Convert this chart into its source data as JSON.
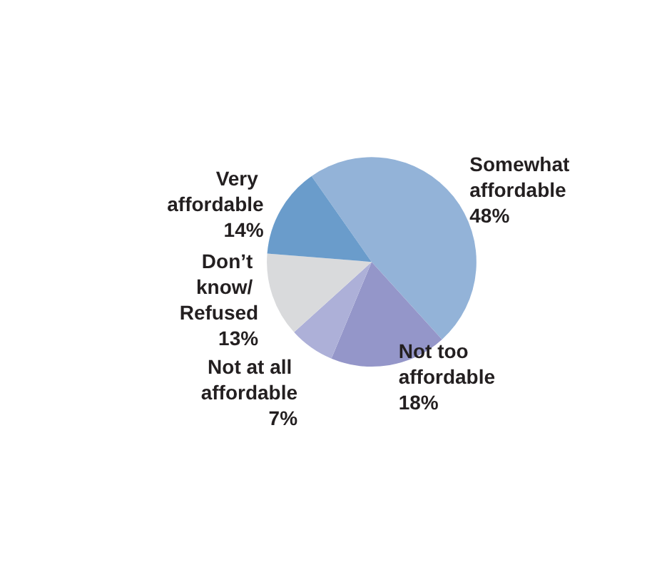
{
  "chart_data": {
    "type": "pie",
    "categories": [
      "Somewhat affordable",
      "Not too affordable",
      "Not at all affordable",
      "Don’t know/ Refused",
      "Very affordable"
    ],
    "values": [
      48,
      18,
      7,
      13,
      14
    ],
    "value_labels": [
      "48%",
      "18%",
      "7%",
      "13%",
      "14%"
    ],
    "colors": [
      "#93b3d8",
      "#9496c9",
      "#adb0d8",
      "#d9dadc",
      "#6a9ccb"
    ],
    "legend": false
  }
}
